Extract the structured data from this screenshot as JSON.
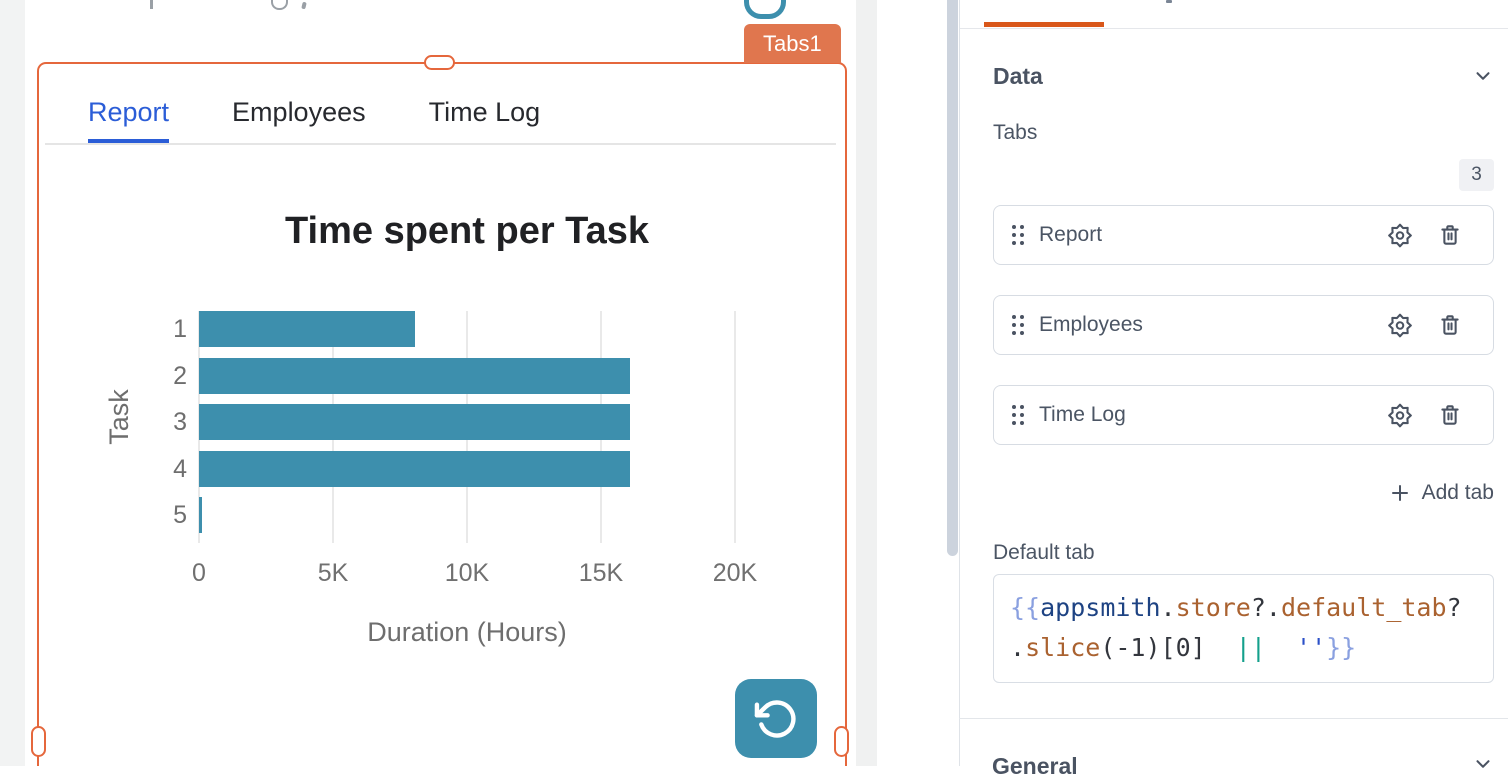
{
  "canvas": {
    "widget_name_badge": "Tabs1",
    "widget_tabs": [
      "Report",
      "Employees",
      "Time Log"
    ],
    "active_widget_tab": "Report"
  },
  "chart_data": {
    "type": "bar",
    "orientation": "horizontal",
    "title": "Time spent per Task",
    "categories": [
      "1",
      "2",
      "3",
      "4",
      "5"
    ],
    "values": [
      8050,
      16100,
      16100,
      16100,
      75
    ],
    "xlabel": "Duration (Hours)",
    "ylabel": "Task",
    "xlim": [
      0,
      20000
    ],
    "xticks": [
      0,
      5000,
      10000,
      15000,
      20000
    ],
    "xtick_labels": [
      "0",
      "5K",
      "10K",
      "15K",
      "20K"
    ],
    "grid": true,
    "legend": false,
    "bar_color": "#3d8fad"
  },
  "panel": {
    "data_section_label": "Data",
    "tabs_field_label": "Tabs",
    "tabs_count_badge": "3",
    "tab_items": [
      {
        "label": "Report"
      },
      {
        "label": "Employees"
      },
      {
        "label": "Time Log"
      }
    ],
    "add_tab_label": "Add tab",
    "default_tab_label": "Default tab",
    "default_tab_code": "{{appsmith.store?.default_tab?.slice(-1)[0] || ''}}",
    "code_lines": [
      [
        {
          "c": "br",
          "t": "{{"
        },
        {
          "c": "obj",
          "t": "appsmith"
        },
        {
          "c": "pl",
          "t": "."
        },
        {
          "c": "prop",
          "t": "store"
        },
        {
          "c": "pl",
          "t": "?."
        },
        {
          "c": "prop",
          "t": "default_tab"
        },
        {
          "c": "pl",
          "t": "?"
        }
      ],
      [
        {
          "c": "pl",
          "t": "."
        },
        {
          "c": "prop",
          "t": "slice"
        },
        {
          "c": "pl",
          "t": "(-1)[0]  "
        },
        {
          "c": "op",
          "t": "||"
        },
        {
          "c": "pl",
          "t": "  "
        },
        {
          "c": "str",
          "t": "''"
        },
        {
          "c": "br",
          "t": "}}"
        }
      ]
    ],
    "general_section_label": "General"
  },
  "colors": {
    "selection_orange": "#e5673c",
    "widget_badge_orange": "#e0764e",
    "panel_tab_underline_orange": "#d9571a",
    "teal": "#3d8fad",
    "active_tab_blue": "#2b5dd7"
  }
}
